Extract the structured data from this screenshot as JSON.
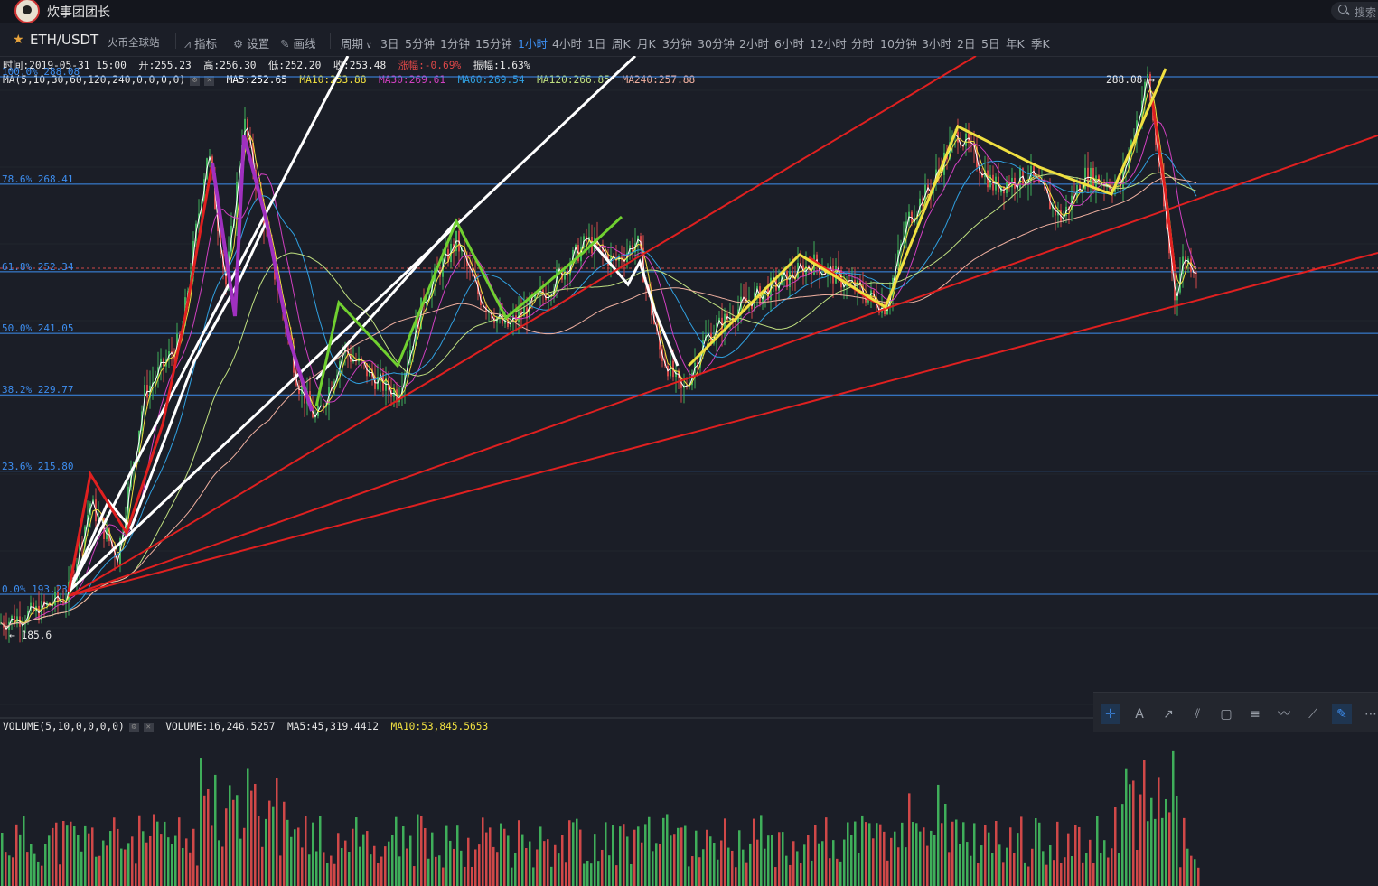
{
  "window": {
    "title": "炊事团团长",
    "search_placeholder": "搜索"
  },
  "toolbar": {
    "pair": "ETH/USDT",
    "exchange": "火币全球站",
    "indicator_label": "指标",
    "settings_label": "设置",
    "draw_label": "画线",
    "period_label": "周期",
    "periods": [
      "3日",
      "5分钟",
      "1分钟",
      "15分钟",
      "1小时",
      "4小时",
      "1日",
      "周K",
      "月K",
      "3分钟",
      "30分钟",
      "2小时",
      "6小时",
      "12小时",
      "分时",
      "10分钟",
      "3小时",
      "2日",
      "5日",
      "年K",
      "季K"
    ],
    "active_period": "1小时"
  },
  "ohlc": {
    "time": "时间:2019-05-31 15:00",
    "open": "开:255.23",
    "high": "高:256.30",
    "low": "低:252.20",
    "close": "收:253.48",
    "change": "涨幅:-0.69%",
    "amplitude": "振幅:1.63%"
  },
  "ma": {
    "settings": "MA(5,10,30,60,120,240,0,0,0,0)",
    "ma5": "MA5:252.65",
    "ma10": "MA10:253.88",
    "ma30": "MA30:269.61",
    "ma60": "MA60:269.54",
    "ma120": "MA120:266.85",
    "ma240": "MA240:257.88"
  },
  "fib_levels": [
    {
      "label": "100.0% 288.08",
      "price": 288.08
    },
    {
      "label": "78.6% 268.41",
      "price": 268.41
    },
    {
      "label": "61.8% 252.34",
      "price": 252.34
    },
    {
      "label": "50.0% 241.05",
      "price": 241.05
    },
    {
      "label": "38.2% 229.77",
      "price": 229.77
    },
    {
      "label": "23.6% 215.80",
      "price": 215.8
    },
    {
      "label": "0.0% 193.23",
      "price": 193.23
    }
  ],
  "marks": {
    "high_label": "288.08 →",
    "low_label": "← 185.6"
  },
  "volume": {
    "settings": "VOLUME(5,10,0,0,0,0)",
    "volume": "VOLUME:16,246.5257",
    "ma5": "MA5:45,319.4412",
    "ma10": "MA10:53,845.5653"
  },
  "colors": {
    "up": "#3fae5a",
    "down": "#d04848",
    "fib": "#3d8ef0",
    "ma5": "#ffffff",
    "ma10": "#f0e040",
    "ma30": "#d040c0",
    "ma60": "#30a0e0",
    "ma120": "#c0e080",
    "ma240": "#f0b0a0",
    "annot_white": "#ffffff",
    "annot_red": "#e02020",
    "annot_yellow": "#f0e040",
    "annot_green": "#70d030",
    "annot_purple": "#a030c0"
  },
  "drawing_tools": [
    "crosshair-icon",
    "text-icon",
    "trend-line-icon",
    "pitchfork-icon",
    "rectangle-icon",
    "fib-icon",
    "wave-icon",
    "ruler-icon",
    "pen-icon",
    "more-icon"
  ]
}
